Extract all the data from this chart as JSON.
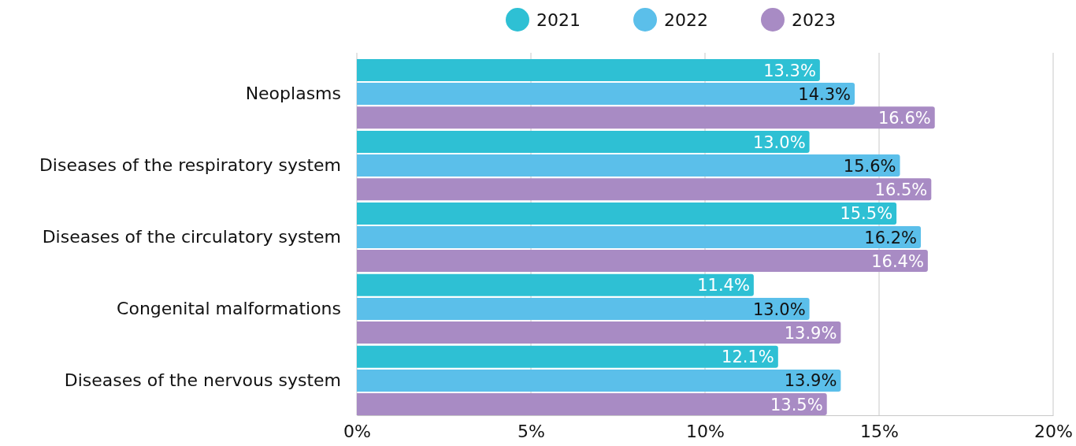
{
  "chart_data": {
    "type": "bar",
    "orientation": "horizontal",
    "categories": [
      "Neoplasms",
      "Diseases of the respiratory system",
      "Diseases of the circulatory system",
      "Congenital malformations",
      "Diseases of the nervous system"
    ],
    "series": [
      {
        "name": "2021",
        "color": "#2ec0d4",
        "values": [
          13.3,
          13.0,
          15.5,
          11.4,
          12.1
        ],
        "value_labels": [
          "13.3%",
          "13.0%",
          "15.5%",
          "11.4%",
          "12.1%"
        ]
      },
      {
        "name": "2022",
        "color": "#5bbfea",
        "values": [
          14.3,
          15.6,
          16.2,
          13.0,
          13.9
        ],
        "value_labels": [
          "14.3%",
          "15.6%",
          "16.2%",
          "13.0%",
          "13.9%"
        ]
      },
      {
        "name": "2023",
        "color": "#a88bc4",
        "values": [
          16.6,
          16.5,
          16.4,
          13.9,
          13.5
        ],
        "value_labels": [
          "16.6%",
          "16.5%",
          "16.4%",
          "13.9%",
          "13.5%"
        ]
      }
    ],
    "xlim": [
      0,
      20
    ],
    "xticks": [
      {
        "value": 0,
        "label": "0%"
      },
      {
        "value": 5,
        "label": "5%"
      },
      {
        "value": 10,
        "label": "10%"
      },
      {
        "value": 15,
        "label": "15%"
      },
      {
        "value": 20,
        "label": "20%"
      }
    ],
    "grid": "x",
    "legend": "top"
  }
}
